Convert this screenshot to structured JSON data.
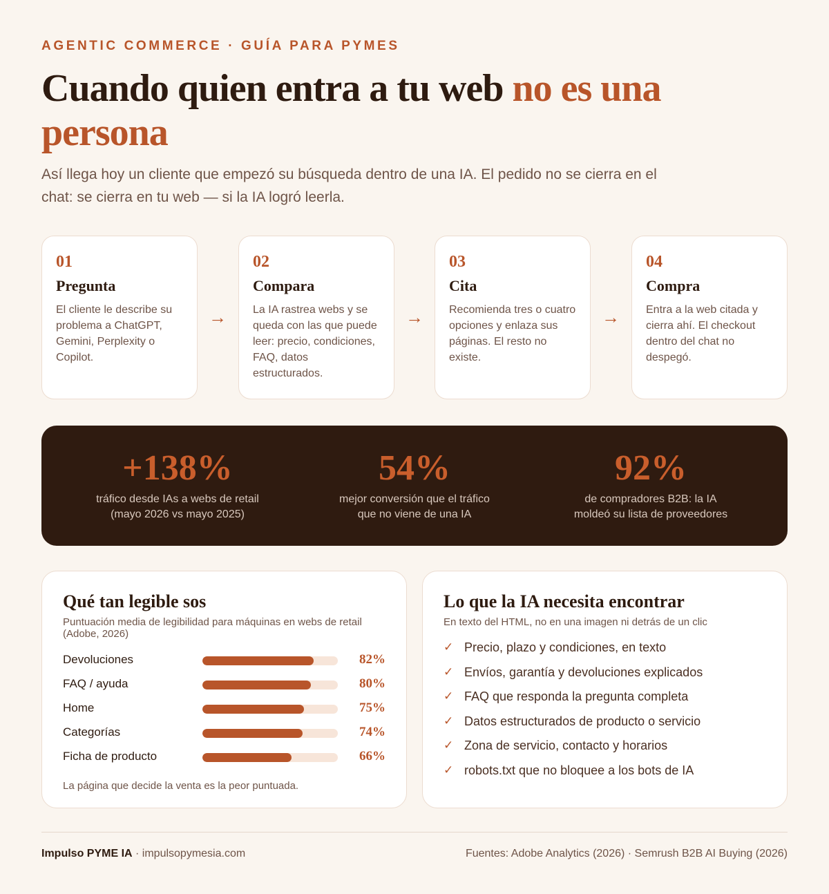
{
  "header": {
    "eyebrow": "AGENTIC COMMERCE · GUÍA PARA PYMES",
    "title_main": "Cuando quien entra a tu web ",
    "title_accent": "no es una persona",
    "lead": "Así llega hoy un cliente que empezó su búsqueda dentro de una IA. El pedido no se cierra en el chat: se cierra en tu web — si la IA logró leerla."
  },
  "steps": [
    {
      "num": "01",
      "title": "Pregunta",
      "desc": "El cliente le describe su problema a ChatGPT, Gemini, Perplexity o Copilot."
    },
    {
      "num": "02",
      "title": "Compara",
      "desc": "La IA rastrea webs y se queda con las que puede leer: precio, condiciones, FAQ, datos estructurados."
    },
    {
      "num": "03",
      "title": "Cita",
      "desc": "Recomienda tres o cuatro opciones y enlaza sus páginas. El resto no existe."
    },
    {
      "num": "04",
      "title": "Compra",
      "desc": "Entra a la web citada y cierra ahí. El checkout dentro del chat no despegó."
    }
  ],
  "arrow": "→",
  "stats": [
    {
      "value": "+138%",
      "caption_1": "tráfico desde IAs a webs de retail",
      "caption_2": "(mayo 2026 vs mayo 2025)"
    },
    {
      "value": "54%",
      "caption_1": "mejor conversión que el tráfico",
      "caption_2": "que no viene de una IA"
    },
    {
      "value": "92%",
      "caption_1": "de compradores B2B: la IA",
      "caption_2": "moldeó su lista de proveedores"
    }
  ],
  "legibility": {
    "title": "Qué tan legible sos",
    "subtitle": "Puntuación media de legibilidad para máquinas en webs de retail (Adobe, 2026)",
    "rows": [
      {
        "label": "Devoluciones",
        "value": 82,
        "value_label": "82%"
      },
      {
        "label": "FAQ / ayuda",
        "value": 80,
        "value_label": "80%"
      },
      {
        "label": "Home",
        "value": 75,
        "value_label": "75%"
      },
      {
        "label": "Categorías",
        "value": 74,
        "value_label": "74%"
      },
      {
        "label": "Ficha de producto",
        "value": 66,
        "value_label": "66%"
      }
    ],
    "note": "La página que decide la venta es la peor puntuada."
  },
  "checklist": {
    "title": "Lo que la IA necesita encontrar",
    "subtitle": "En texto del HTML, no en una imagen ni detrás de un clic",
    "tick": "✓",
    "items": [
      "Precio, plazo y condiciones, en texto",
      "Envíos, garantía y devoluciones explicados",
      "FAQ que responda la pregunta completa",
      "Datos estructurados de producto o servicio",
      "Zona de servicio, contacto y horarios",
      "robots.txt que no bloquee a los bots de IA"
    ]
  },
  "footer": {
    "brand": "Impulso PYME IA",
    "separator": " · ",
    "site": "impulsopymesia.com",
    "sources": "Fuentes: Adobe Analytics (2026) · Semrush B2B AI Buying (2026)"
  },
  "colors": {
    "accent": "#b8552a",
    "dark": "#2f1b10",
    "background": "#faf5ef"
  }
}
